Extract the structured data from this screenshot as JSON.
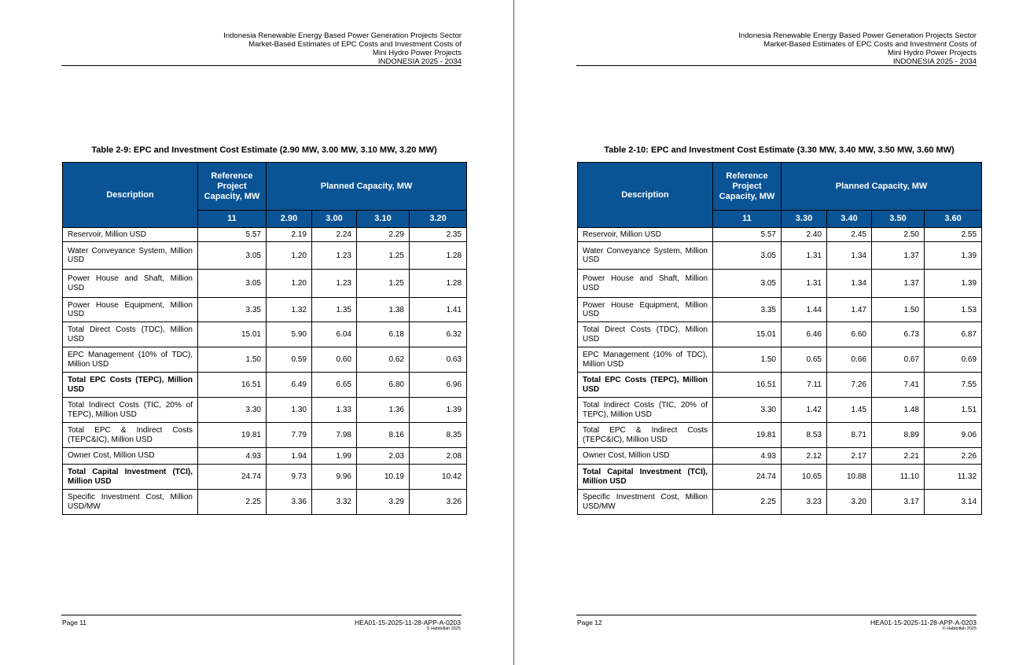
{
  "header_lines": [
    "Indonesia Renewable Energy Based Power Generation Projects Sector",
    "Market-Based Estimates of EPC Costs and Investment Costs of",
    "Mini Hydro Power Projects",
    "INDONESIA 2025 - 2034"
  ],
  "colors": {
    "header_bg": "#0a5394",
    "header_text": "#ffffff"
  },
  "footer": {
    "code": "HEA01-15-2025-11-28-APP-A-0203",
    "copyright": "© Habibillah  2025"
  },
  "pages": [
    {
      "page_label": "Page 11",
      "table": {
        "title": "Table 2-9: EPC and Investment Cost Estimate (2.90 MW, 3.00 MW, 3.10 MW, 3.20 MW)",
        "head_description": "Description",
        "head_reference": "Reference Project Capacity, MW",
        "head_planned": "Planned Capacity, MW",
        "capacities": [
          "11",
          "2.90",
          "3.00",
          "3.10",
          "3.20"
        ],
        "rows": [
          {
            "label": "Reservoir, Million USD",
            "values": [
              "5.57",
              "2.19",
              "2.24",
              "2.29",
              "2.35"
            ],
            "bold": false
          },
          {
            "label": "Water Conveyance System, Million USD",
            "values": [
              "3.05",
              "1.20",
              "1.23",
              "1.25",
              "1.28"
            ],
            "bold": false
          },
          {
            "label": "Power House and Shaft, Million USD",
            "values": [
              "3.05",
              "1.20",
              "1.23",
              "1.25",
              "1.28"
            ],
            "bold": false
          },
          {
            "label": "Power House Equipment, Million USD",
            "values": [
              "3.35",
              "1.32",
              "1.35",
              "1.38",
              "1.41"
            ],
            "bold": false
          },
          {
            "label": "Total Direct Costs (TDC), Million USD",
            "values": [
              "15.01",
              "5.90",
              "6.04",
              "6.18",
              "6.32"
            ],
            "bold": false
          },
          {
            "label": "EPC Management (10% of TDC), Million USD",
            "values": [
              "1.50",
              "0.59",
              "0.60",
              "0.62",
              "0.63"
            ],
            "bold": false
          },
          {
            "label": "Total EPC Costs (TEPC), Million USD",
            "values": [
              "16.51",
              "6.49",
              "6.65",
              "6.80",
              "6.96"
            ],
            "bold": true
          },
          {
            "label": "Total Indirect Costs (TIC, 20% of TEPC), Million USD",
            "values": [
              "3.30",
              "1.30",
              "1.33",
              "1.36",
              "1.39"
            ],
            "bold": false
          },
          {
            "label": "Total EPC & Indirect Costs (TEPC&IC), Million USD",
            "values": [
              "19.81",
              "7.79",
              "7.98",
              "8.16",
              "8.35"
            ],
            "bold": false
          },
          {
            "label": "Owner Cost, Million USD",
            "values": [
              "4.93",
              "1.94",
              "1.99",
              "2.03",
              "2.08"
            ],
            "bold": false
          },
          {
            "label": "Total Capital Investment (TCI), Million USD",
            "values": [
              "24.74",
              "9.73",
              "9.96",
              "10.19",
              "10.42"
            ],
            "bold": true
          },
          {
            "label": "Specific Investment Cost, Million USD/MW",
            "values": [
              "2.25",
              "3.36",
              "3.32",
              "3.29",
              "3.26"
            ],
            "bold": false
          }
        ]
      }
    },
    {
      "page_label": "Page 12",
      "table": {
        "title": "Table 2-10: EPC and Investment Cost Estimate (3.30 MW, 3.40 MW, 3.50 MW, 3.60 MW)",
        "head_description": "Description",
        "head_reference": "Reference Project Capacity, MW",
        "head_planned": "Planned Capacity, MW",
        "capacities": [
          "11",
          "3.30",
          "3.40",
          "3.50",
          "3.60"
        ],
        "rows": [
          {
            "label": "Reservoir, Million USD",
            "values": [
              "5.57",
              "2.40",
              "2.45",
              "2.50",
              "2.55"
            ],
            "bold": false
          },
          {
            "label": "Water Conveyance System, Million USD",
            "values": [
              "3.05",
              "1.31",
              "1.34",
              "1.37",
              "1.39"
            ],
            "bold": false
          },
          {
            "label": "Power House and Shaft, Million USD",
            "values": [
              "3.05",
              "1.31",
              "1.34",
              "1.37",
              "1.39"
            ],
            "bold": false
          },
          {
            "label": "Power House Equipment, Million USD",
            "values": [
              "3.35",
              "1.44",
              "1.47",
              "1.50",
              "1.53"
            ],
            "bold": false
          },
          {
            "label": "Total Direct Costs (TDC), Million USD",
            "values": [
              "15.01",
              "6.46",
              "6.60",
              "6.73",
              "6.87"
            ],
            "bold": false
          },
          {
            "label": "EPC Management (10% of TDC), Million USD",
            "values": [
              "1.50",
              "0.65",
              "0.66",
              "0.67",
              "0.69"
            ],
            "bold": false
          },
          {
            "label": "Total EPC Costs (TEPC), Million USD",
            "values": [
              "16.51",
              "7.11",
              "7.26",
              "7.41",
              "7.55"
            ],
            "bold": true
          },
          {
            "label": "Total Indirect Costs (TIC, 20% of TEPC), Million USD",
            "values": [
              "3.30",
              "1.42",
              "1.45",
              "1.48",
              "1.51"
            ],
            "bold": false
          },
          {
            "label": "Total EPC & Indirect Costs (TEPC&IC), Million USD",
            "values": [
              "19.81",
              "8.53",
              "8.71",
              "8.89",
              "9.06"
            ],
            "bold": false
          },
          {
            "label": "Owner Cost, Million USD",
            "values": [
              "4.93",
              "2.12",
              "2.17",
              "2.21",
              "2.26"
            ],
            "bold": false
          },
          {
            "label": "Total Capital Investment (TCI), Million USD",
            "values": [
              "24.74",
              "10.65",
              "10.88",
              "11.10",
              "11.32"
            ],
            "bold": true
          },
          {
            "label": "Specific Investment Cost, Million USD/MW",
            "values": [
              "2.25",
              "3.23",
              "3.20",
              "3.17",
              "3.14"
            ],
            "bold": false
          }
        ]
      }
    }
  ]
}
